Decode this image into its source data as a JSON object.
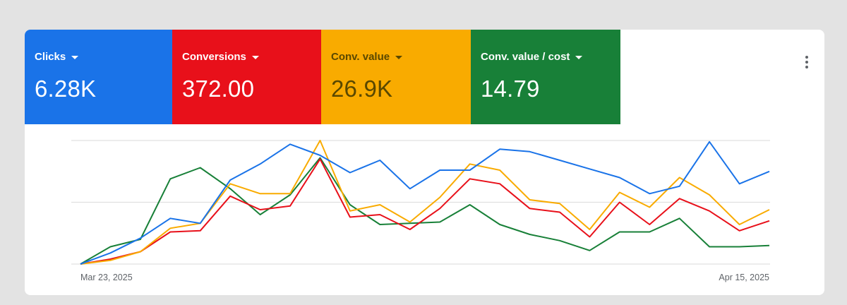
{
  "metrics": [
    {
      "label": "Clicks",
      "value": "6.28K",
      "color": "#1a73e8"
    },
    {
      "label": "Conversions",
      "value": "372.00",
      "color": "#e8101a"
    },
    {
      "label": "Conv. value",
      "value": "26.9K",
      "color": "#f9ab00"
    },
    {
      "label": "Conv. value / cost",
      "value": "14.79",
      "color": "#188038"
    }
  ],
  "menu_icon": "more-vert-icon",
  "chart_data": {
    "type": "line",
    "x_start_label": "Mar 23, 2025",
    "x_end_label": "Apr 15, 2025",
    "x": [
      "Mar 23",
      "Mar 24",
      "Mar 25",
      "Mar 26",
      "Mar 27",
      "Mar 28",
      "Mar 29",
      "Mar 30",
      "Mar 31",
      "Apr 1",
      "Apr 2",
      "Apr 3",
      "Apr 4",
      "Apr 5",
      "Apr 6",
      "Apr 7",
      "Apr 8",
      "Apr 9",
      "Apr 10",
      "Apr 11",
      "Apr 12",
      "Apr 13",
      "Apr 14",
      "Apr 15"
    ],
    "ylim": [
      0,
      100
    ],
    "grid": true,
    "series": [
      {
        "color": "#1a73e8",
        "values": [
          0,
          9,
          21,
          37,
          33,
          68,
          81,
          97,
          88,
          74,
          84,
          61,
          76,
          76,
          93,
          91,
          84,
          77,
          70,
          57,
          63,
          99,
          65,
          75
        ]
      },
      {
        "color": "#e8101a",
        "values": [
          0,
          4,
          10,
          26,
          27,
          55,
          44,
          47,
          85,
          38,
          40,
          28,
          45,
          69,
          65,
          45,
          42,
          22,
          50,
          32,
          53,
          43,
          27,
          35
        ]
      },
      {
        "color": "#f9ab00",
        "values": [
          0,
          3,
          10,
          29,
          33,
          65,
          57,
          57,
          100,
          43,
          48,
          34,
          54,
          81,
          76,
          52,
          49,
          28,
          58,
          46,
          70,
          56,
          32,
          44
        ]
      },
      {
        "color": "#188038",
        "values": [
          0,
          14,
          20,
          69,
          78,
          61,
          40,
          56,
          86,
          48,
          32,
          33,
          34,
          48,
          32,
          24,
          19,
          11,
          26,
          26,
          37,
          14,
          14,
          15
        ]
      }
    ]
  }
}
